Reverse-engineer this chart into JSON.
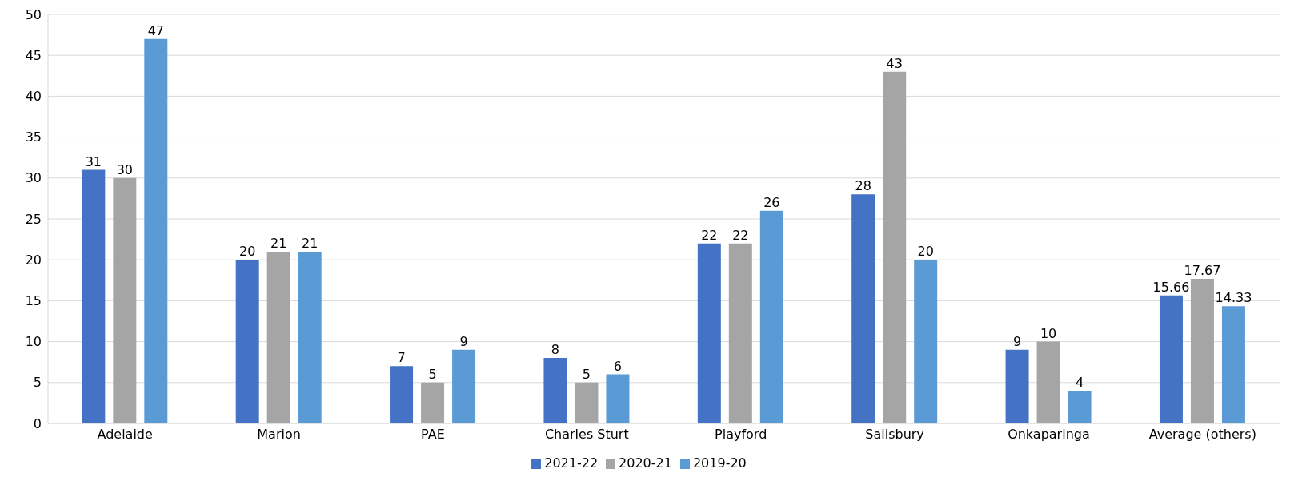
{
  "chart_data": {
    "type": "bar",
    "categories": [
      "Adelaide",
      "Marion",
      "PAE",
      "Charles Sturt",
      "Playford",
      "Salisbury",
      "Onkaparinga",
      "Average (others)"
    ],
    "series": [
      {
        "name": "2021-22",
        "color": "#4472c4",
        "values": [
          31,
          20,
          7,
          8,
          22,
          28,
          9,
          15.66
        ]
      },
      {
        "name": "2020-21",
        "color": "#a5a5a5",
        "values": [
          30,
          21,
          5,
          5,
          22,
          43,
          10,
          17.67
        ]
      },
      {
        "name": "2019-20",
        "color": "#5b9bd5",
        "values": [
          47,
          21,
          9,
          6,
          26,
          20,
          4,
          14.33
        ]
      }
    ],
    "ylim": [
      0,
      50
    ],
    "yticks": [
      0,
      5,
      10,
      15,
      20,
      25,
      30,
      35,
      40,
      45,
      50
    ],
    "grid": "y",
    "legend": "bottom",
    "data_labels": true
  }
}
